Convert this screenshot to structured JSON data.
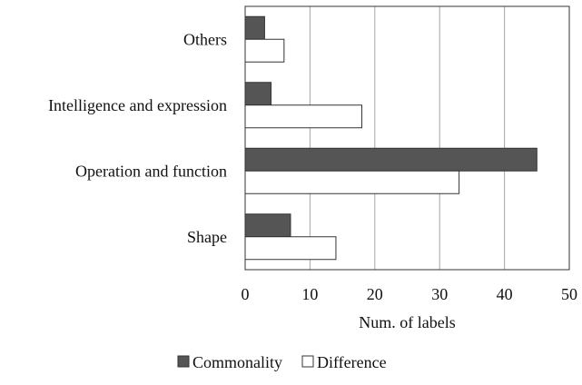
{
  "chart_data": {
    "type": "bar",
    "orientation": "horizontal",
    "categories": [
      "Others",
      "Intelligence and expression",
      "Operation and function",
      "Shape"
    ],
    "series": [
      {
        "name": "Commonality",
        "values": [
          3,
          4,
          45,
          7
        ],
        "color": "#555555"
      },
      {
        "name": "Difference",
        "values": [
          6,
          18,
          33,
          14
        ],
        "color": "#ffffff"
      }
    ],
    "title": "",
    "xlabel": "Num. of labels",
    "ylabel": "",
    "xlim": [
      0,
      50
    ],
    "xticks": [
      "0",
      "10",
      "20",
      "30",
      "40",
      "50"
    ],
    "grid": "vertical",
    "legend_position": "bottom"
  }
}
